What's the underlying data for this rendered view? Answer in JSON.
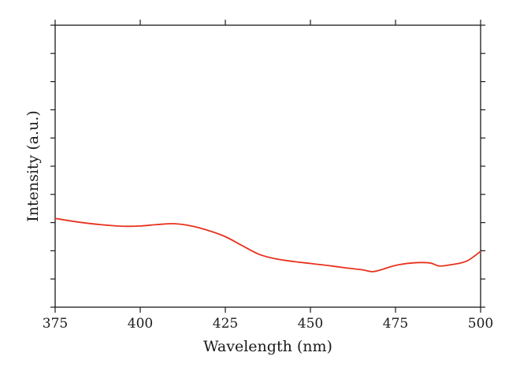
{
  "chart_data": {
    "type": "line",
    "xlabel": "Wavelength (nm)",
    "ylabel": "Intensity (a.u.)",
    "xlim": [
      375,
      500
    ],
    "ylim": [
      0,
      10
    ],
    "x_ticks": [
      "375",
      "400",
      "425",
      "450",
      "475",
      "500"
    ],
    "y_tick_labels_shown": false,
    "y_minor_ticks": 10,
    "grid": false,
    "series": [
      {
        "color": "#e8321e",
        "x": [
          375,
          380,
          385,
          390,
          395,
          400,
          405,
          410,
          415,
          420,
          425,
          430,
          435,
          440,
          445,
          450,
          455,
          460,
          465,
          468,
          470,
          475,
          480,
          485,
          488,
          492,
          496,
          500
        ],
        "y": [
          3.15,
          3.05,
          2.97,
          2.91,
          2.87,
          2.88,
          2.93,
          2.96,
          2.88,
          2.72,
          2.5,
          2.18,
          1.87,
          1.71,
          1.62,
          1.55,
          1.48,
          1.4,
          1.33,
          1.26,
          1.3,
          1.48,
          1.57,
          1.57,
          1.46,
          1.52,
          1.64,
          1.98
        ]
      }
    ]
  }
}
